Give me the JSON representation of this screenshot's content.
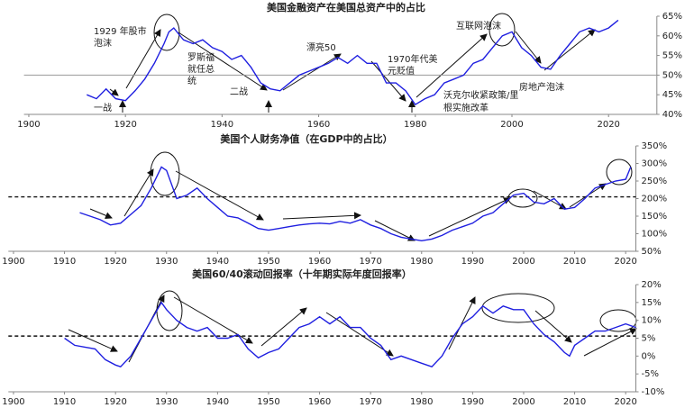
{
  "chart_data": [
    {
      "type": "line",
      "title": "美国金融资产在美国总资产中的占比",
      "x": [
        1912,
        1914,
        1916,
        1918,
        1920,
        1922,
        1924,
        1926,
        1928,
        1929,
        1930,
        1932,
        1934,
        1936,
        1938,
        1940,
        1942,
        1944,
        1946,
        1948,
        1950,
        1952,
        1954,
        1956,
        1958,
        1960,
        1962,
        1964,
        1966,
        1968,
        1970,
        1972,
        1974,
        1976,
        1978,
        1980,
        1982,
        1984,
        1986,
        1988,
        1990,
        1992,
        1994,
        1996,
        1998,
        2000,
        2002,
        2004,
        2006,
        2008,
        2010,
        2012,
        2014,
        2016,
        2018,
        2020,
        2022
      ],
      "series": [
        {
          "color": "#1f1fe0",
          "values": [
            45,
            44,
            46.5,
            44,
            43.5,
            46,
            49,
            53,
            58,
            61,
            62,
            59,
            58,
            59,
            57,
            56,
            54,
            55,
            52,
            48,
            46.5,
            46,
            48,
            50,
            51,
            52,
            53,
            54.5,
            53,
            55,
            53,
            53,
            48,
            48,
            46,
            42.5,
            44,
            45,
            48,
            49,
            50,
            53,
            54,
            57,
            60,
            61,
            57,
            55,
            52,
            51.5,
            55,
            58,
            61,
            62,
            61,
            62,
            64
          ]
        }
      ],
      "xlim": [
        1899,
        2030
      ],
      "xticks": [
        1900,
        1920,
        1940,
        1960,
        1980,
        2000,
        2020
      ],
      "ylim": [
        40,
        65
      ],
      "yticks": [
        {
          "value": 40,
          "label": "40%"
        },
        {
          "value": 45,
          "label": "45%"
        },
        {
          "value": 50,
          "label": "50%"
        },
        {
          "value": 55,
          "label": "55%"
        },
        {
          "value": 60,
          "label": "60%"
        },
        {
          "value": 65,
          "label": "65%"
        }
      ],
      "ref_line": {
        "value": 50,
        "style": "solid"
      },
      "annotations": [
        [
          "1929 年股市",
          "泡沫"
        ],
        [
          "罗斯福",
          "就任总",
          "统"
        ],
        [
          "二战"
        ],
        [
          "漂亮50"
        ],
        [
          "1970年代美",
          "元贬值"
        ],
        [
          "沃克尔收紧政策/里",
          "根实施改革"
        ],
        [
          "互联网泡沫"
        ],
        [
          "房地产泡沫"
        ],
        [
          "一战"
        ]
      ]
    },
    {
      "type": "line",
      "title": "美国个人财务净值（在GDP中的占比）",
      "x": [
        1913,
        1915,
        1917,
        1919,
        1921,
        1923,
        1925,
        1927,
        1929,
        1930,
        1932,
        1934,
        1936,
        1938,
        1940,
        1942,
        1944,
        1946,
        1948,
        1950,
        1952,
        1954,
        1956,
        1958,
        1960,
        1962,
        1964,
        1966,
        1968,
        1970,
        1972,
        1974,
        1976,
        1978,
        1980,
        1982,
        1984,
        1986,
        1988,
        1990,
        1992,
        1994,
        1996,
        1998,
        2000,
        2002,
        2004,
        2006,
        2008,
        2010,
        2012,
        2014,
        2016,
        2018,
        2020,
        2021
      ],
      "series": [
        {
          "color": "#1f1fe0",
          "values": [
            160,
            150,
            140,
            125,
            130,
            155,
            180,
            230,
            290,
            280,
            200,
            210,
            230,
            200,
            175,
            150,
            145,
            130,
            115,
            110,
            115,
            120,
            125,
            128,
            130,
            128,
            135,
            130,
            140,
            125,
            115,
            100,
            90,
            85,
            80,
            85,
            95,
            110,
            120,
            130,
            150,
            160,
            185,
            210,
            215,
            190,
            185,
            200,
            170,
            175,
            200,
            230,
            240,
            250,
            255,
            290
          ]
        }
      ],
      "xlim": [
        1899,
        2022
      ],
      "xticks": [
        1900,
        1910,
        1920,
        1930,
        1940,
        1950,
        1960,
        1970,
        1980,
        1990,
        2000,
        2010,
        2020
      ],
      "ylim": [
        50,
        350
      ],
      "yticks": [
        {
          "value": 50,
          "label": "50%"
        },
        {
          "value": 100,
          "label": "100%"
        },
        {
          "value": 150,
          "label": "150%"
        },
        {
          "value": 200,
          "label": "200%"
        },
        {
          "value": 250,
          "label": "250%"
        },
        {
          "value": 300,
          "label": "300%"
        },
        {
          "value": 350,
          "label": "350%"
        }
      ],
      "ref_line": {
        "value": 205,
        "style": "dashed"
      }
    },
    {
      "type": "line",
      "title": "美国60/40滚动回报率（十年期实际年度回报率）",
      "x": [
        1910,
        1912,
        1914,
        1916,
        1918,
        1920,
        1921,
        1923,
        1925,
        1927,
        1929,
        1930,
        1932,
        1934,
        1936,
        1938,
        1940,
        1942,
        1944,
        1946,
        1948,
        1950,
        1952,
        1954,
        1956,
        1958,
        1960,
        1962,
        1964,
        1966,
        1968,
        1970,
        1972,
        1974,
        1976,
        1978,
        1980,
        1982,
        1984,
        1986,
        1988,
        1990,
        1992,
        1994,
        1996,
        1998,
        2000,
        2002,
        2004,
        2006,
        2008,
        2009,
        2010,
        2012,
        2014,
        2016,
        2018,
        2020,
        2022
      ],
      "series": [
        {
          "color": "#1f1fe0",
          "values": [
            5,
            3,
            2.5,
            2,
            -1,
            -2.5,
            -3,
            0,
            5,
            10,
            15,
            13,
            10,
            8,
            7,
            8,
            5,
            5,
            6,
            2,
            -0.5,
            1,
            2,
            5,
            8,
            9,
            11,
            9,
            11,
            8,
            8,
            5,
            3,
            -1,
            0,
            -1,
            -2,
            -3,
            0,
            5,
            9,
            11,
            14,
            12,
            14,
            13,
            13,
            9,
            6,
            4,
            1,
            0,
            3,
            5,
            7,
            7,
            8,
            9,
            8
          ]
        }
      ],
      "xlim": [
        1899,
        2022
      ],
      "xticks": [
        1900,
        1910,
        1920,
        1930,
        1940,
        1950,
        1960,
        1970,
        1980,
        1990,
        2000,
        2010,
        2020
      ],
      "ylim": [
        -10,
        20
      ],
      "yticks": [
        {
          "value": -10,
          "label": "-10%"
        },
        {
          "value": -5,
          "label": "-5%"
        },
        {
          "value": 0,
          "label": "0%"
        },
        {
          "value": 5,
          "label": "5%"
        },
        {
          "value": 10,
          "label": "10%"
        },
        {
          "value": 15,
          "label": "15%"
        },
        {
          "value": 20,
          "label": "20%"
        }
      ],
      "ref_line": {
        "value": 5.6,
        "style": "dashed"
      }
    }
  ]
}
